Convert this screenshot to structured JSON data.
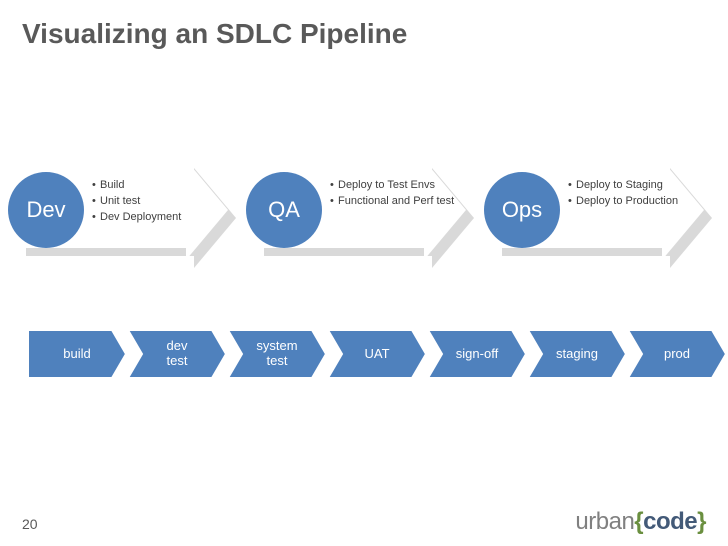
{
  "title": "Visualizing an SDLC Pipeline",
  "page_number": "20",
  "colors": {
    "arrow_blue": "#4f81bd",
    "arrow_white": "#ffffff",
    "shadow": "#d9d9d9",
    "chevron_fill": "#4f81bd",
    "chevron_border": "#ffffff",
    "title_text": "#595959",
    "bullet_text": "#404040"
  },
  "arrows": [
    {
      "label": "Dev",
      "bullets": [
        "Build",
        "Unit test",
        "Dev Deployment"
      ]
    },
    {
      "label": "QA",
      "bullets": [
        "Deploy to Test Envs",
        "Functional and Perf test"
      ]
    },
    {
      "label": "Ops",
      "bullets": [
        "Deploy to Staging",
        "Deploy to Production"
      ]
    }
  ],
  "chevrons": [
    {
      "label": "build",
      "width": 98
    },
    {
      "label": "dev\ntest",
      "width": 98
    },
    {
      "label": "system\ntest",
      "width": 98
    },
    {
      "label": "UAT",
      "width": 98
    },
    {
      "label": "sign-off",
      "width": 98
    },
    {
      "label": "staging",
      "width": 98
    },
    {
      "label": "prod",
      "width": 98
    }
  ],
  "logo": {
    "part1": "urban",
    "brace_open": "{",
    "part2": "code",
    "brace_close": "}"
  }
}
